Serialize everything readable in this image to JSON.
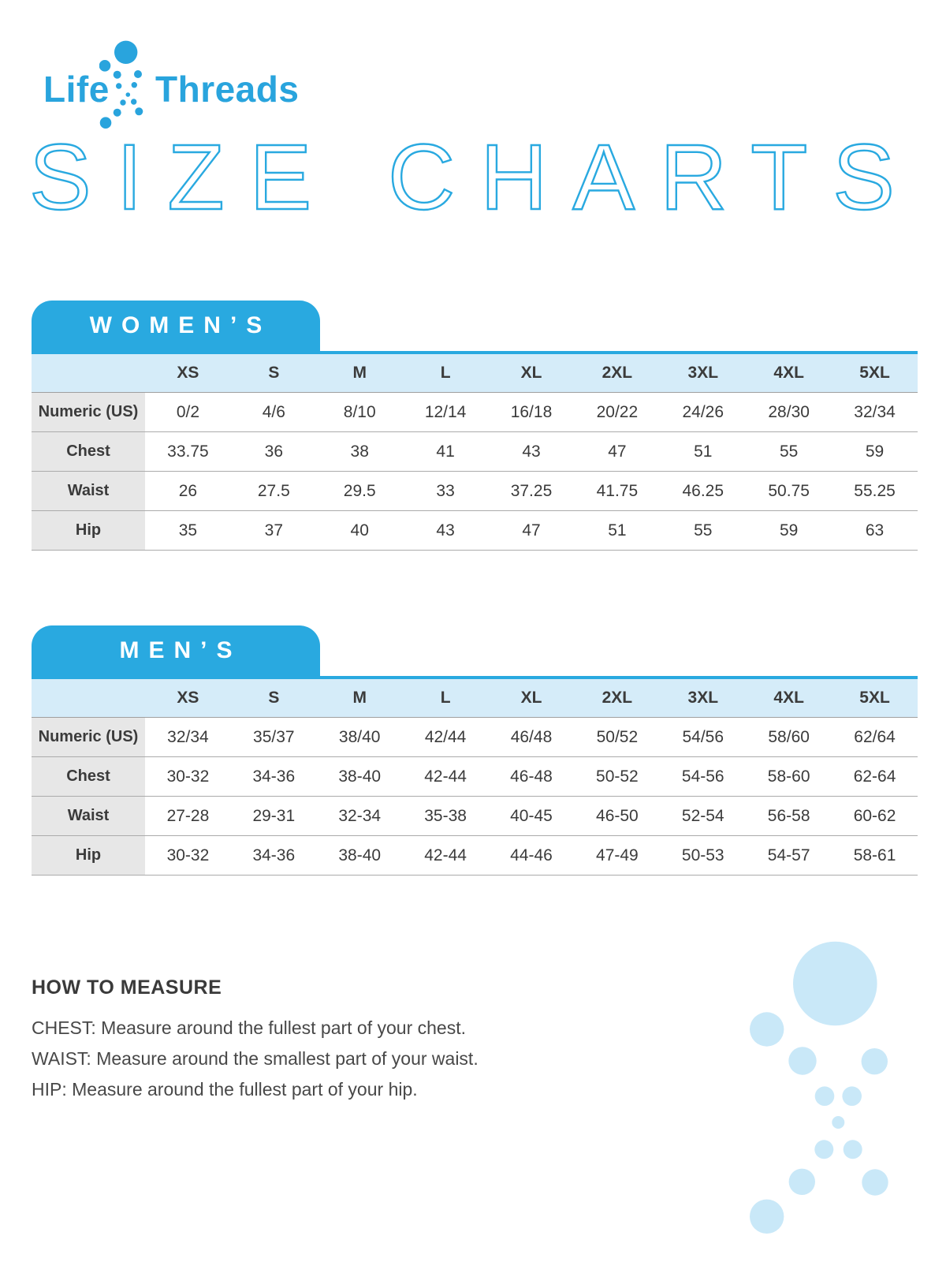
{
  "brand": {
    "logo_left": "Life",
    "logo_right": "Threads",
    "logo_mark": "dots-helix-icon",
    "accent_color": "#29a9e0",
    "accent_light_color": "#c9e8f8",
    "header_row_color": "#d5ecf9",
    "label_column_color": "#e7e7e7",
    "text_color": "#3b3b3b"
  },
  "title": "SIZE CHARTS",
  "tables": [
    {
      "tab_label": "WOMEN’S",
      "columns": [
        "XS",
        "S",
        "M",
        "L",
        "XL",
        "2XL",
        "3XL",
        "4XL",
        "5XL"
      ],
      "rows": [
        {
          "label": "Numeric (US)",
          "values": [
            "0/2",
            "4/6",
            "8/10",
            "12/14",
            "16/18",
            "20/22",
            "24/26",
            "28/30",
            "32/34"
          ]
        },
        {
          "label": "Chest",
          "values": [
            "33.75",
            "36",
            "38",
            "41",
            "43",
            "47",
            "51",
            "55",
            "59"
          ]
        },
        {
          "label": "Waist",
          "values": [
            "26",
            "27.5",
            "29.5",
            "33",
            "37.25",
            "41.75",
            "46.25",
            "50.75",
            "55.25"
          ]
        },
        {
          "label": "Hip",
          "values": [
            "35",
            "37",
            "40",
            "43",
            "47",
            "51",
            "55",
            "59",
            "63"
          ]
        }
      ]
    },
    {
      "tab_label": "MEN’S",
      "columns": [
        "XS",
        "S",
        "M",
        "L",
        "XL",
        "2XL",
        "3XL",
        "4XL",
        "5XL"
      ],
      "rows": [
        {
          "label": "Numeric (US)",
          "values": [
            "32/34",
            "35/37",
            "38/40",
            "42/44",
            "46/48",
            "50/52",
            "54/56",
            "58/60",
            "62/64"
          ]
        },
        {
          "label": "Chest",
          "values": [
            "30-32",
            "34-36",
            "38-40",
            "42-44",
            "46-48",
            "50-52",
            "54-56",
            "58-60",
            "62-64"
          ]
        },
        {
          "label": "Waist",
          "values": [
            "27-28",
            "29-31",
            "32-34",
            "35-38",
            "40-45",
            "46-50",
            "52-54",
            "56-58",
            "60-62"
          ]
        },
        {
          "label": "Hip",
          "values": [
            "30-32",
            "34-36",
            "38-40",
            "42-44",
            "44-46",
            "47-49",
            "50-53",
            "54-57",
            "58-61"
          ]
        }
      ]
    }
  ],
  "how_to_measure": {
    "heading": "HOW TO MEASURE",
    "items": [
      "CHEST: Measure around the fullest part of your chest.",
      "WAIST: Measure around the smallest part of your waist.",
      "HIP: Measure around the fullest part of your hip."
    ]
  }
}
